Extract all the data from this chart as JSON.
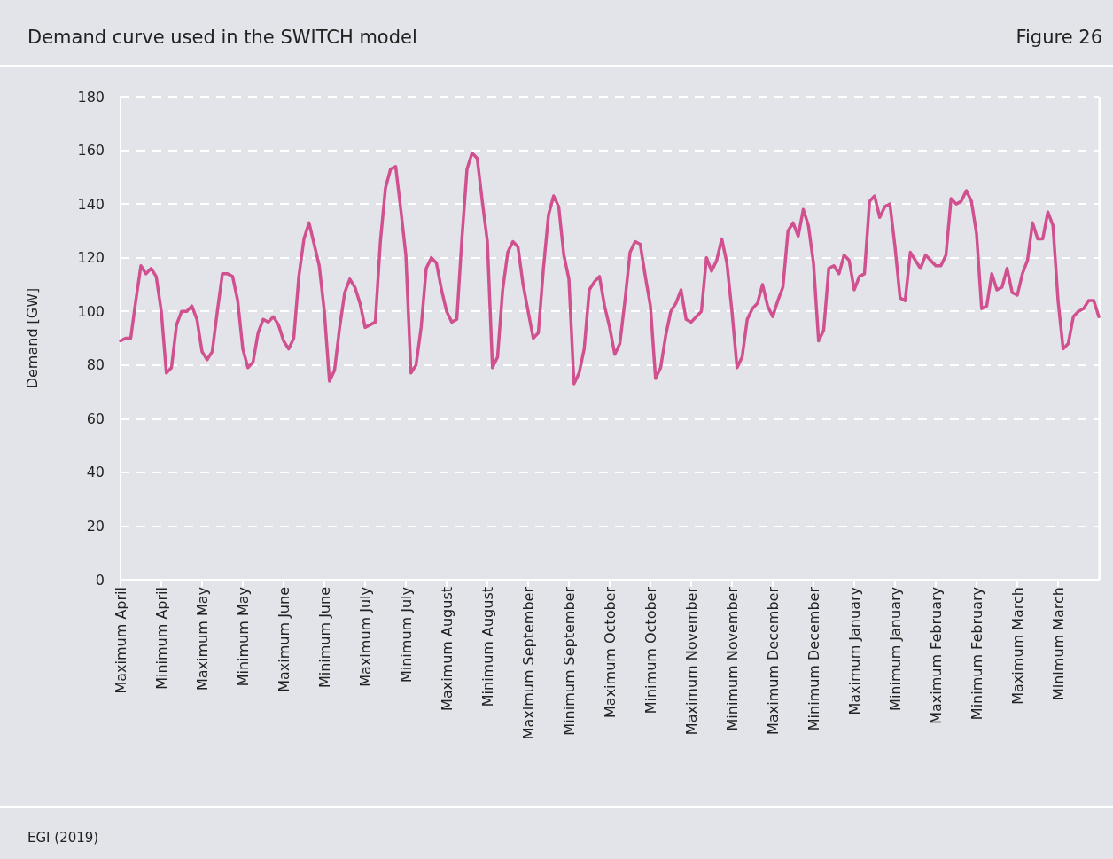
{
  "chart_data": {
    "type": "line",
    "title": "Demand curve used in the SWITCH model",
    "ylabel": "Demand [GW]",
    "annotations": [
      "Figure 26",
      "EGI (2019)"
    ],
    "categories": [
      "Maximum April",
      null,
      null,
      null,
      null,
      null,
      null,
      null,
      "Minimum April",
      null,
      null,
      null,
      null,
      null,
      null,
      null,
      "Maximum May",
      null,
      null,
      null,
      null,
      null,
      null,
      null,
      "Minimum May",
      null,
      null,
      null,
      null,
      null,
      null,
      null,
      "Maximum June",
      null,
      null,
      null,
      null,
      null,
      null,
      null,
      "Minimum June",
      null,
      null,
      null,
      null,
      null,
      null,
      null,
      "Maximum July",
      null,
      null,
      null,
      null,
      null,
      null,
      null,
      "Minimum July",
      null,
      null,
      null,
      null,
      null,
      null,
      null,
      "Maximum August",
      null,
      null,
      null,
      null,
      null,
      null,
      null,
      "Minimum August",
      null,
      null,
      null,
      null,
      null,
      null,
      null,
      "Maximum September",
      null,
      null,
      null,
      null,
      null,
      null,
      null,
      "Minimum September",
      null,
      null,
      null,
      null,
      null,
      null,
      null,
      "Maximum October",
      null,
      null,
      null,
      null,
      null,
      null,
      null,
      "Minimum October",
      null,
      null,
      null,
      null,
      null,
      null,
      null,
      "Maximum November",
      null,
      null,
      null,
      null,
      null,
      null,
      null,
      "Minimum November",
      null,
      null,
      null,
      null,
      null,
      null,
      null,
      "Maximum December",
      null,
      null,
      null,
      null,
      null,
      null,
      null,
      "Minimum December",
      null,
      null,
      null,
      null,
      null,
      null,
      null,
      "Maximum January",
      null,
      null,
      null,
      null,
      null,
      null,
      null,
      "Minimum January",
      null,
      null,
      null,
      null,
      null,
      null,
      null,
      "Maximum February",
      null,
      null,
      null,
      null,
      null,
      null,
      null,
      "Minimum February",
      null,
      null,
      null,
      null,
      null,
      null,
      null,
      "Maximum March",
      null,
      null,
      null,
      null,
      null,
      null,
      null,
      "Minimum March",
      null,
      null,
      null,
      null,
      null,
      null,
      null,
      null
    ],
    "series": [
      {
        "color": "#d1508f",
        "values": [
          89,
          90,
          90,
          104,
          117,
          114,
          116,
          113,
          100,
          77,
          79,
          95,
          100,
          100,
          102,
          97,
          85,
          82,
          85,
          100,
          114,
          114,
          113,
          104,
          86,
          79,
          81,
          92,
          97,
          96,
          98,
          95,
          89,
          86,
          90,
          113,
          127,
          133,
          125,
          117,
          100,
          74,
          78,
          94,
          107,
          112,
          109,
          103,
          94,
          95,
          96,
          126,
          146,
          153,
          154,
          138,
          121,
          77,
          80,
          94,
          116,
          120,
          118,
          108,
          100,
          96,
          97,
          127,
          153,
          159,
          157,
          141,
          126,
          79,
          83,
          108,
          122,
          126,
          124,
          110,
          100,
          90,
          92,
          116,
          136,
          143,
          139,
          121,
          112,
          73,
          77,
          86,
          108,
          111,
          113,
          102,
          94,
          84,
          88,
          104,
          122,
          126,
          125,
          113,
          102,
          75,
          79,
          91,
          100,
          103,
          108,
          97,
          96,
          98,
          100,
          120,
          115,
          119,
          127,
          118,
          100,
          79,
          83,
          97,
          101,
          103,
          110,
          102,
          98,
          104,
          109,
          130,
          133,
          128,
          138,
          132,
          118,
          89,
          93,
          116,
          117,
          114,
          121,
          119,
          108,
          113,
          114,
          141,
          143,
          135,
          139,
          140,
          124,
          105,
          104,
          122,
          119,
          116,
          121,
          119,
          117,
          117,
          121,
          142,
          140,
          141,
          145,
          141,
          129,
          101,
          102,
          114,
          108,
          109,
          116,
          107,
          106,
          114,
          119,
          133,
          127,
          127,
          137,
          132,
          104,
          86,
          88,
          98,
          100,
          101,
          104,
          104,
          98
        ]
      }
    ],
    "ylim": [
      0,
      180
    ],
    "yticks": [
      0,
      20,
      40,
      60,
      80,
      100,
      120,
      140,
      160,
      180
    ],
    "grid": "y",
    "marker": "none",
    "line_style": "solid"
  }
}
